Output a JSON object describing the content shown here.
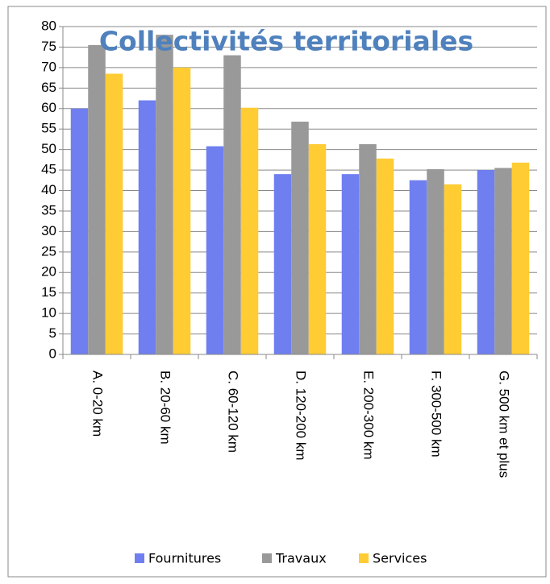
{
  "chart_data": {
    "type": "bar",
    "title": "Collectivités territoriales",
    "categories": [
      "A. 0-20 km",
      "B. 20-60 km",
      "C. 60-120 km",
      "D. 120-200 km",
      "E. 200-300 km",
      "F. 300-500 km",
      "G. 500 km et plus"
    ],
    "series": [
      {
        "name": "Fournitures",
        "color": "#6f7ff0",
        "values": [
          60,
          62,
          50.8,
          44,
          44,
          42.5,
          45
        ]
      },
      {
        "name": "Travaux",
        "color": "#999999",
        "values": [
          75.5,
          78,
          73,
          56.8,
          51.3,
          45.2,
          45.5
        ]
      },
      {
        "name": "Services",
        "color": "#ffcc33",
        "values": [
          68.5,
          70,
          60.2,
          51.3,
          47.8,
          41.5,
          46.8
        ]
      }
    ],
    "ylim": [
      0,
      80
    ],
    "yticks": [
      0,
      5,
      10,
      15,
      20,
      25,
      30,
      35,
      40,
      45,
      50,
      55,
      60,
      65,
      70,
      75,
      80
    ],
    "grid": true,
    "legend": "bottom"
  }
}
